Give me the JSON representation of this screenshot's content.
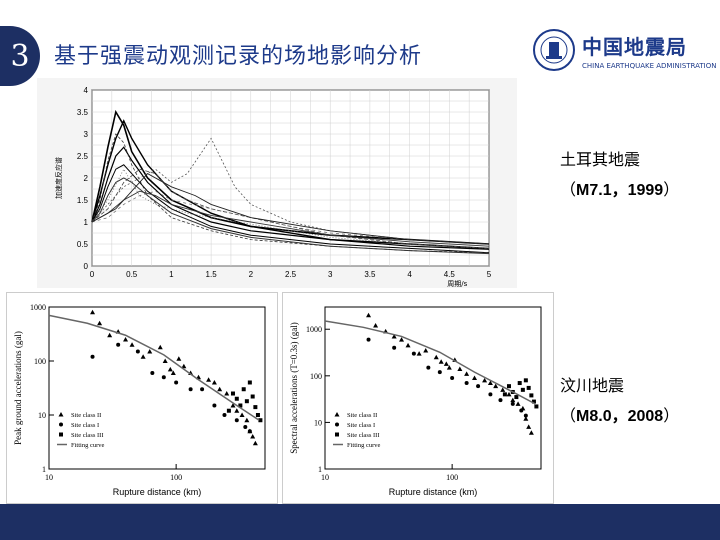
{
  "slide": {
    "number": "3",
    "title": "基于强震动观测记录的场地影响分析"
  },
  "logo": {
    "cn": "中国地震局",
    "en": "CHINA EARTHQUAKE ADMINISTRATION",
    "seal_text": "CHINA EARTHQUAKE ADMINISTRATION"
  },
  "turkey": {
    "name": "土耳其地震",
    "detail_open": "（",
    "detail_bold": "M7.1，1999",
    "detail_close": "）"
  },
  "wenchuan": {
    "name": "汶川地震",
    "detail_open": "（",
    "detail_bold": "M8.0，2008",
    "detail_close": "）"
  },
  "chart_data": [
    {
      "type": "line",
      "ylabel": "加速度反应谱",
      "xlabel": "周期/s",
      "xticks": [
        "0",
        "0.5",
        "1",
        "1.5",
        "2",
        "2.5",
        "3",
        "3.5",
        "4",
        "4.5",
        "5"
      ],
      "yticks": [
        "0",
        "0.5",
        "1",
        "1.5",
        "2",
        "2.5",
        "3",
        "3.5",
        "4"
      ],
      "xlim": [
        0,
        5
      ],
      "ylim": [
        0,
        4
      ],
      "series": [
        {
          "x": [
            0,
            0.1,
            0.2,
            0.3,
            0.4,
            0.5,
            0.7,
            1,
            1.5,
            2,
            3,
            4,
            5
          ],
          "values": [
            1,
            1.8,
            2.7,
            3.5,
            3.2,
            2.6,
            2.0,
            1.5,
            1.1,
            0.9,
            0.7,
            0.6,
            0.5
          ]
        },
        {
          "x": [
            0,
            0.1,
            0.2,
            0.3,
            0.4,
            0.5,
            0.7,
            1,
            1.5,
            2,
            3,
            4,
            5
          ],
          "values": [
            1,
            1.6,
            2.3,
            2.9,
            3.3,
            2.9,
            2.3,
            1.7,
            1.2,
            0.9,
            0.6,
            0.5,
            0.4
          ]
        },
        {
          "x": [
            0,
            0.1,
            0.2,
            0.3,
            0.4,
            0.5,
            0.7,
            1,
            1.5,
            2,
            3,
            4,
            5
          ],
          "values": [
            1,
            1.4,
            2.0,
            2.5,
            2.7,
            2.4,
            1.9,
            1.4,
            1.0,
            0.8,
            0.6,
            0.45,
            0.38
          ]
        },
        {
          "x": [
            0,
            0.1,
            0.2,
            0.3,
            0.4,
            0.5,
            0.7,
            1,
            1.5,
            2,
            3,
            4,
            5
          ],
          "values": [
            1,
            1.3,
            1.8,
            2.2,
            2.3,
            2.1,
            1.7,
            1.3,
            0.9,
            0.7,
            0.5,
            0.4,
            0.3
          ]
        },
        {
          "x": [
            0,
            0.1,
            0.2,
            0.3,
            0.4,
            0.5,
            0.7,
            1,
            1.5,
            2,
            3,
            4,
            5
          ],
          "values": [
            1,
            1.5,
            2.4,
            3.0,
            2.8,
            2.3,
            1.6,
            1.1,
            0.8,
            0.6,
            0.45,
            0.35,
            0.3
          ]
        },
        {
          "x": [
            0,
            0.1,
            0.2,
            0.3,
            0.4,
            0.5,
            0.7,
            1,
            1.5,
            2,
            3,
            4,
            5
          ],
          "values": [
            1,
            1.2,
            1.6,
            1.9,
            2.0,
            1.9,
            1.6,
            1.2,
            0.85,
            0.65,
            0.45,
            0.35,
            0.28
          ]
        },
        {
          "x": [
            0,
            0.2,
            0.4,
            0.6,
            0.8,
            1,
            1.2,
            1.5,
            1.8,
            2,
            2.5,
            3,
            4,
            5
          ],
          "values": [
            1,
            1.4,
            1.8,
            2.0,
            2.2,
            1.9,
            2.1,
            2.9,
            1.8,
            1.4,
            1.0,
            0.8,
            0.6,
            0.5
          ]
        },
        {
          "x": [
            0,
            0.2,
            0.4,
            0.6,
            0.8,
            1,
            1.2,
            1.5,
            2,
            2.5,
            3,
            4,
            5
          ],
          "values": [
            1,
            1.3,
            1.9,
            2.2,
            2.1,
            1.7,
            1.5,
            1.3,
            1.1,
            0.9,
            0.7,
            0.5,
            0.4
          ]
        },
        {
          "x": [
            0,
            0.2,
            0.4,
            0.6,
            0.8,
            1,
            1.2,
            1.5,
            2,
            2.5,
            3,
            4,
            5
          ],
          "values": [
            1,
            1.5,
            2.2,
            1.6,
            1.4,
            1.3,
            1.2,
            1.1,
            0.95,
            0.8,
            0.65,
            0.5,
            0.4
          ]
        },
        {
          "x": [
            0,
            0.2,
            0.4,
            0.6,
            0.8,
            1,
            1.2,
            1.5,
            2,
            2.5,
            3,
            4,
            5
          ],
          "values": [
            1,
            1.2,
            1.5,
            1.7,
            1.6,
            1.4,
            1.3,
            1.15,
            1.0,
            0.85,
            0.7,
            0.55,
            0.45
          ]
        },
        {
          "x": [
            0,
            0.2,
            0.4,
            0.6,
            0.8,
            1,
            1.5,
            2,
            2.5,
            3,
            4,
            5
          ],
          "values": [
            1,
            1.1,
            1.4,
            1.6,
            1.7,
            1.5,
            1.3,
            1.1,
            0.9,
            0.75,
            0.6,
            0.5
          ]
        },
        {
          "x": [
            0,
            0.3,
            0.5,
            0.7,
            1,
            1.3,
            1.5,
            2,
            3,
            4,
            5
          ],
          "values": [
            1,
            1.3,
            1.7,
            2.1,
            1.8,
            1.6,
            1.4,
            1.1,
            0.8,
            0.6,
            0.5
          ]
        }
      ]
    },
    {
      "type": "scatter",
      "xlabel": "Rupture distance (km)",
      "ylabel": "Peak ground accelerations (gal)",
      "xscale": "log",
      "yscale": "log",
      "xlim": [
        10,
        500
      ],
      "ylim": [
        1,
        1000
      ],
      "xticks": [
        "10",
        "100"
      ],
      "yticks": [
        "1",
        "10",
        "100",
        "1000"
      ],
      "legend": [
        "Site class II",
        "Site class I",
        "Site class III",
        "Fitting curve"
      ],
      "series": [
        {
          "name": "Site class II",
          "marker": "triangle",
          "x": [
            22,
            25,
            30,
            35,
            40,
            45,
            55,
            62,
            75,
            82,
            90,
            95,
            105,
            115,
            130,
            150,
            180,
            200,
            220,
            250,
            280,
            300,
            330,
            360,
            380,
            400,
            420
          ],
          "values": [
            800,
            500,
            300,
            350,
            250,
            200,
            120,
            150,
            180,
            100,
            70,
            60,
            110,
            80,
            60,
            50,
            45,
            40,
            30,
            25,
            15,
            12,
            10,
            8,
            5,
            4,
            3
          ]
        },
        {
          "name": "Site class I",
          "marker": "circle",
          "x": [
            22,
            35,
            50,
            65,
            80,
            100,
            130,
            160,
            200,
            240,
            300,
            350,
            380
          ],
          "values": [
            120,
            200,
            150,
            60,
            50,
            40,
            30,
            30,
            15,
            10,
            8,
            6,
            5
          ]
        },
        {
          "name": "Site class III",
          "marker": "square",
          "x": [
            260,
            280,
            300,
            320,
            340,
            360,
            380,
            400,
            420,
            440,
            460
          ],
          "values": [
            12,
            25,
            20,
            15,
            30,
            18,
            40,
            22,
            14,
            10,
            8
          ]
        },
        {
          "name": "Fitting curve",
          "marker": "line",
          "x": [
            10,
            20,
            40,
            80,
            150,
            300,
            450
          ],
          "values": [
            700,
            500,
            300,
            130,
            45,
            15,
            8
          ]
        }
      ]
    },
    {
      "type": "scatter",
      "xlabel": "Rupture distance (km)",
      "ylabel": "Spectral accelerations (T=0.3s) (gal)",
      "xscale": "log",
      "yscale": "log",
      "xlim": [
        10,
        500
      ],
      "ylim": [
        1,
        3000
      ],
      "xticks": [
        "10",
        "100"
      ],
      "yticks": [
        "1",
        "10",
        "100",
        "1000"
      ],
      "legend": [
        "Site class II",
        "Site class I",
        "Site class III",
        "Fitting curve"
      ],
      "series": [
        {
          "name": "Site class II",
          "marker": "triangle",
          "x": [
            22,
            25,
            30,
            35,
            40,
            45,
            55,
            62,
            75,
            82,
            90,
            95,
            105,
            115,
            130,
            150,
            180,
            200,
            220,
            250,
            280,
            300,
            330,
            360,
            380,
            400,
            420
          ],
          "values": [
            2000,
            1200,
            900,
            700,
            600,
            450,
            300,
            350,
            250,
            200,
            180,
            150,
            220,
            140,
            110,
            90,
            80,
            70,
            60,
            50,
            40,
            30,
            25,
            20,
            12,
            8,
            6
          ]
        },
        {
          "name": "Site class I",
          "marker": "circle",
          "x": [
            22,
            35,
            50,
            65,
            80,
            100,
            130,
            160,
            200,
            240,
            300,
            350,
            380
          ],
          "values": [
            600,
            400,
            300,
            150,
            120,
            90,
            70,
            60,
            40,
            30,
            25,
            18,
            14
          ]
        },
        {
          "name": "Site class III",
          "marker": "square",
          "x": [
            260,
            280,
            300,
            320,
            340,
            360,
            380,
            400,
            420,
            440,
            460
          ],
          "values": [
            40,
            60,
            45,
            35,
            70,
            50,
            80,
            55,
            38,
            28,
            22
          ]
        },
        {
          "name": "Fitting curve",
          "marker": "line",
          "x": [
            10,
            20,
            40,
            80,
            150,
            300,
            450
          ],
          "values": [
            1500,
            1100,
            700,
            320,
            120,
            45,
            25
          ]
        }
      ]
    }
  ]
}
